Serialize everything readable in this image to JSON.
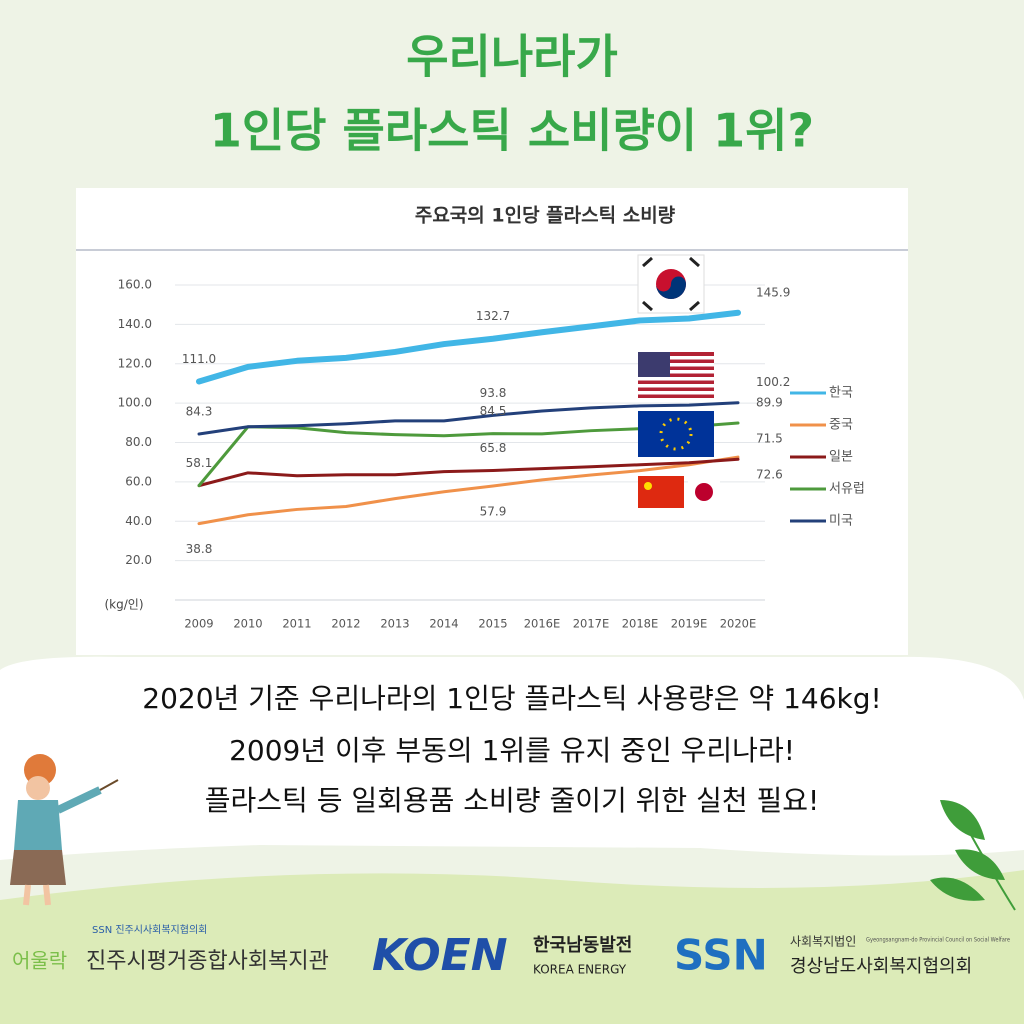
{
  "header": {
    "title_lines": [
      "우리나라가",
      "1인당 플라스틱 소비량이 1위?"
    ]
  },
  "chart_data": {
    "type": "line",
    "title": "주요국의 1인당 플라스틱 소비량",
    "y_label": "(kg/인)",
    "categories": [
      "2009",
      "2010",
      "2011",
      "2012",
      "2013",
      "2014",
      "2015",
      "2016E",
      "2017E",
      "2018E",
      "2019E",
      "2020E"
    ],
    "series": [
      {
        "name": "한국",
        "color": "#41b6e6",
        "values": [
          111,
          118.4,
          121.5,
          123,
          126,
          130,
          132.7,
          136,
          139,
          142,
          143,
          145.9
        ],
        "value_labels": [
          "111.0",
          null,
          null,
          null,
          null,
          null,
          "132.7",
          null,
          null,
          null,
          null,
          "145.9"
        ]
      },
      {
        "name": "중국",
        "color": "#f0914a",
        "values": [
          38.8,
          43.3,
          46,
          47.5,
          51.5,
          55,
          57.9,
          61,
          63.5,
          65.7,
          68.7,
          72.6
        ],
        "value_labels": [
          "38.8",
          null,
          null,
          null,
          null,
          null,
          "57.9",
          null,
          null,
          null,
          null,
          "72.6"
        ]
      },
      {
        "name": "일본",
        "color": "#8b1a1a",
        "values": [
          58.1,
          64.6,
          63.1,
          63.6,
          63.6,
          65.2,
          65.8,
          66.7,
          67.7,
          68.7,
          69.7,
          71.5
        ],
        "value_labels": [
          "58.1",
          null,
          null,
          null,
          null,
          null,
          "65.8",
          null,
          null,
          null,
          null,
          "71.5"
        ]
      },
      {
        "name": "서유럽",
        "color": "#4e9a3c",
        "values": [
          58.1,
          88,
          87.5,
          85,
          84,
          83.4,
          84.5,
          84.4,
          86,
          87,
          88,
          89.9
        ],
        "value_labels": [
          null,
          null,
          null,
          null,
          null,
          null,
          "84.5",
          null,
          null,
          null,
          null,
          "89.9"
        ]
      },
      {
        "name": "미국",
        "color": "#23407a",
        "values": [
          84.3,
          88,
          88.5,
          89.5,
          91,
          91,
          93.8,
          96,
          97.6,
          98.6,
          99,
          100.2
        ],
        "value_labels": [
          "84.3",
          null,
          null,
          null,
          null,
          null,
          "93.8",
          null,
          null,
          null,
          null,
          "100.2"
        ]
      }
    ],
    "ylim": [
      0,
      160
    ],
    "yticks": [
      {
        "value": 20,
        "label": "20.0"
      },
      {
        "value": 40,
        "label": "40.0"
      },
      {
        "value": 60,
        "label": "60.0"
      },
      {
        "value": 80,
        "label": "80.0"
      },
      {
        "value": 100,
        "label": "100.0"
      },
      {
        "value": 120,
        "label": "120.0"
      },
      {
        "value": 140,
        "label": "140.0"
      },
      {
        "value": 160,
        "label": "160.0"
      }
    ],
    "grid": true,
    "legend": "right"
  },
  "body": {
    "lines": [
      "2020년 기준 우리나라의 1인당 플라스틱 사용량은 약 146kg!",
      "2009년 이후 부동의 1위를 유지 중인 우리나라!",
      "플라스틱 등 일회용품 소비량 줄이기 위한 실천 필요!"
    ]
  },
  "footer": {
    "org1_small": "SSN 진주시사회복지협의회",
    "org1_brand": "어울락",
    "org1_name": "진주시평거종합사회복지관",
    "org2_logo": "KOEN",
    "org2_name": "한국남동발전",
    "org2_sub": "KOREA ENERGY",
    "org3_logo": "SSN",
    "org3_type": "사회복지법인",
    "org3_en": "Gyeongsangnam-do Provincial Council on Social Welfare",
    "org3_name": "경상남도사회복지협의회"
  }
}
